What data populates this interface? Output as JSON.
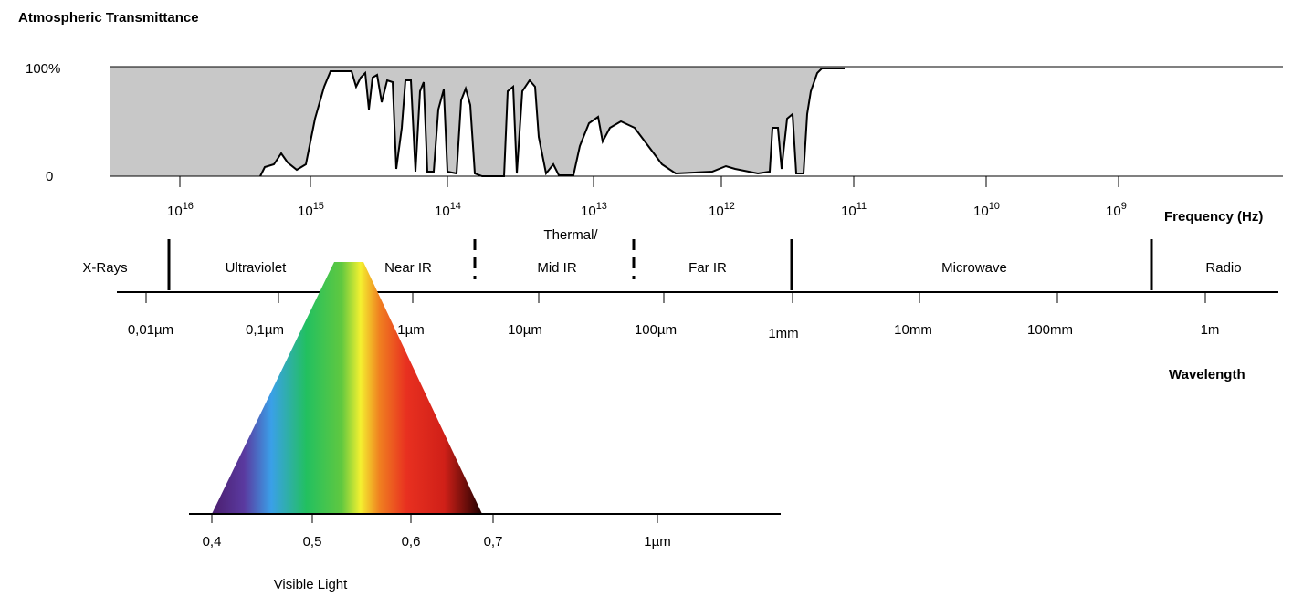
{
  "title": "Atmospheric Transmittance",
  "transmittance_axis": {
    "top": "100%",
    "bottom": "0"
  },
  "frequency_ticks": [
    {
      "base": "10",
      "exp": "16"
    },
    {
      "base": "10",
      "exp": "15"
    },
    {
      "base": "10",
      "exp": "14"
    },
    {
      "base": "10",
      "exp": "13"
    },
    {
      "base": "10",
      "exp": "12"
    },
    {
      "base": "10",
      "exp": "11"
    },
    {
      "base": "10",
      "exp": "10"
    },
    {
      "base": "10",
      "exp": "9"
    }
  ],
  "frequency_label": "Frequency (Hz)",
  "bands": [
    "X-Rays",
    "Ultraviolet",
    "Near IR",
    "Thermal/",
    "Mid IR",
    "Far IR",
    "Microwave",
    "Radio"
  ],
  "wavelength_ticks": [
    "0,01µm",
    "0,1µm",
    "1µm",
    "10µm",
    "100µm",
    "1mm",
    "10mm",
    "100mm",
    "1m"
  ],
  "wavelength_label": "Wavelength",
  "visible_ticks": [
    "0,4",
    "0,5",
    "0,6",
    "0,7",
    "1µm"
  ],
  "visible_label": "Visible Light"
}
